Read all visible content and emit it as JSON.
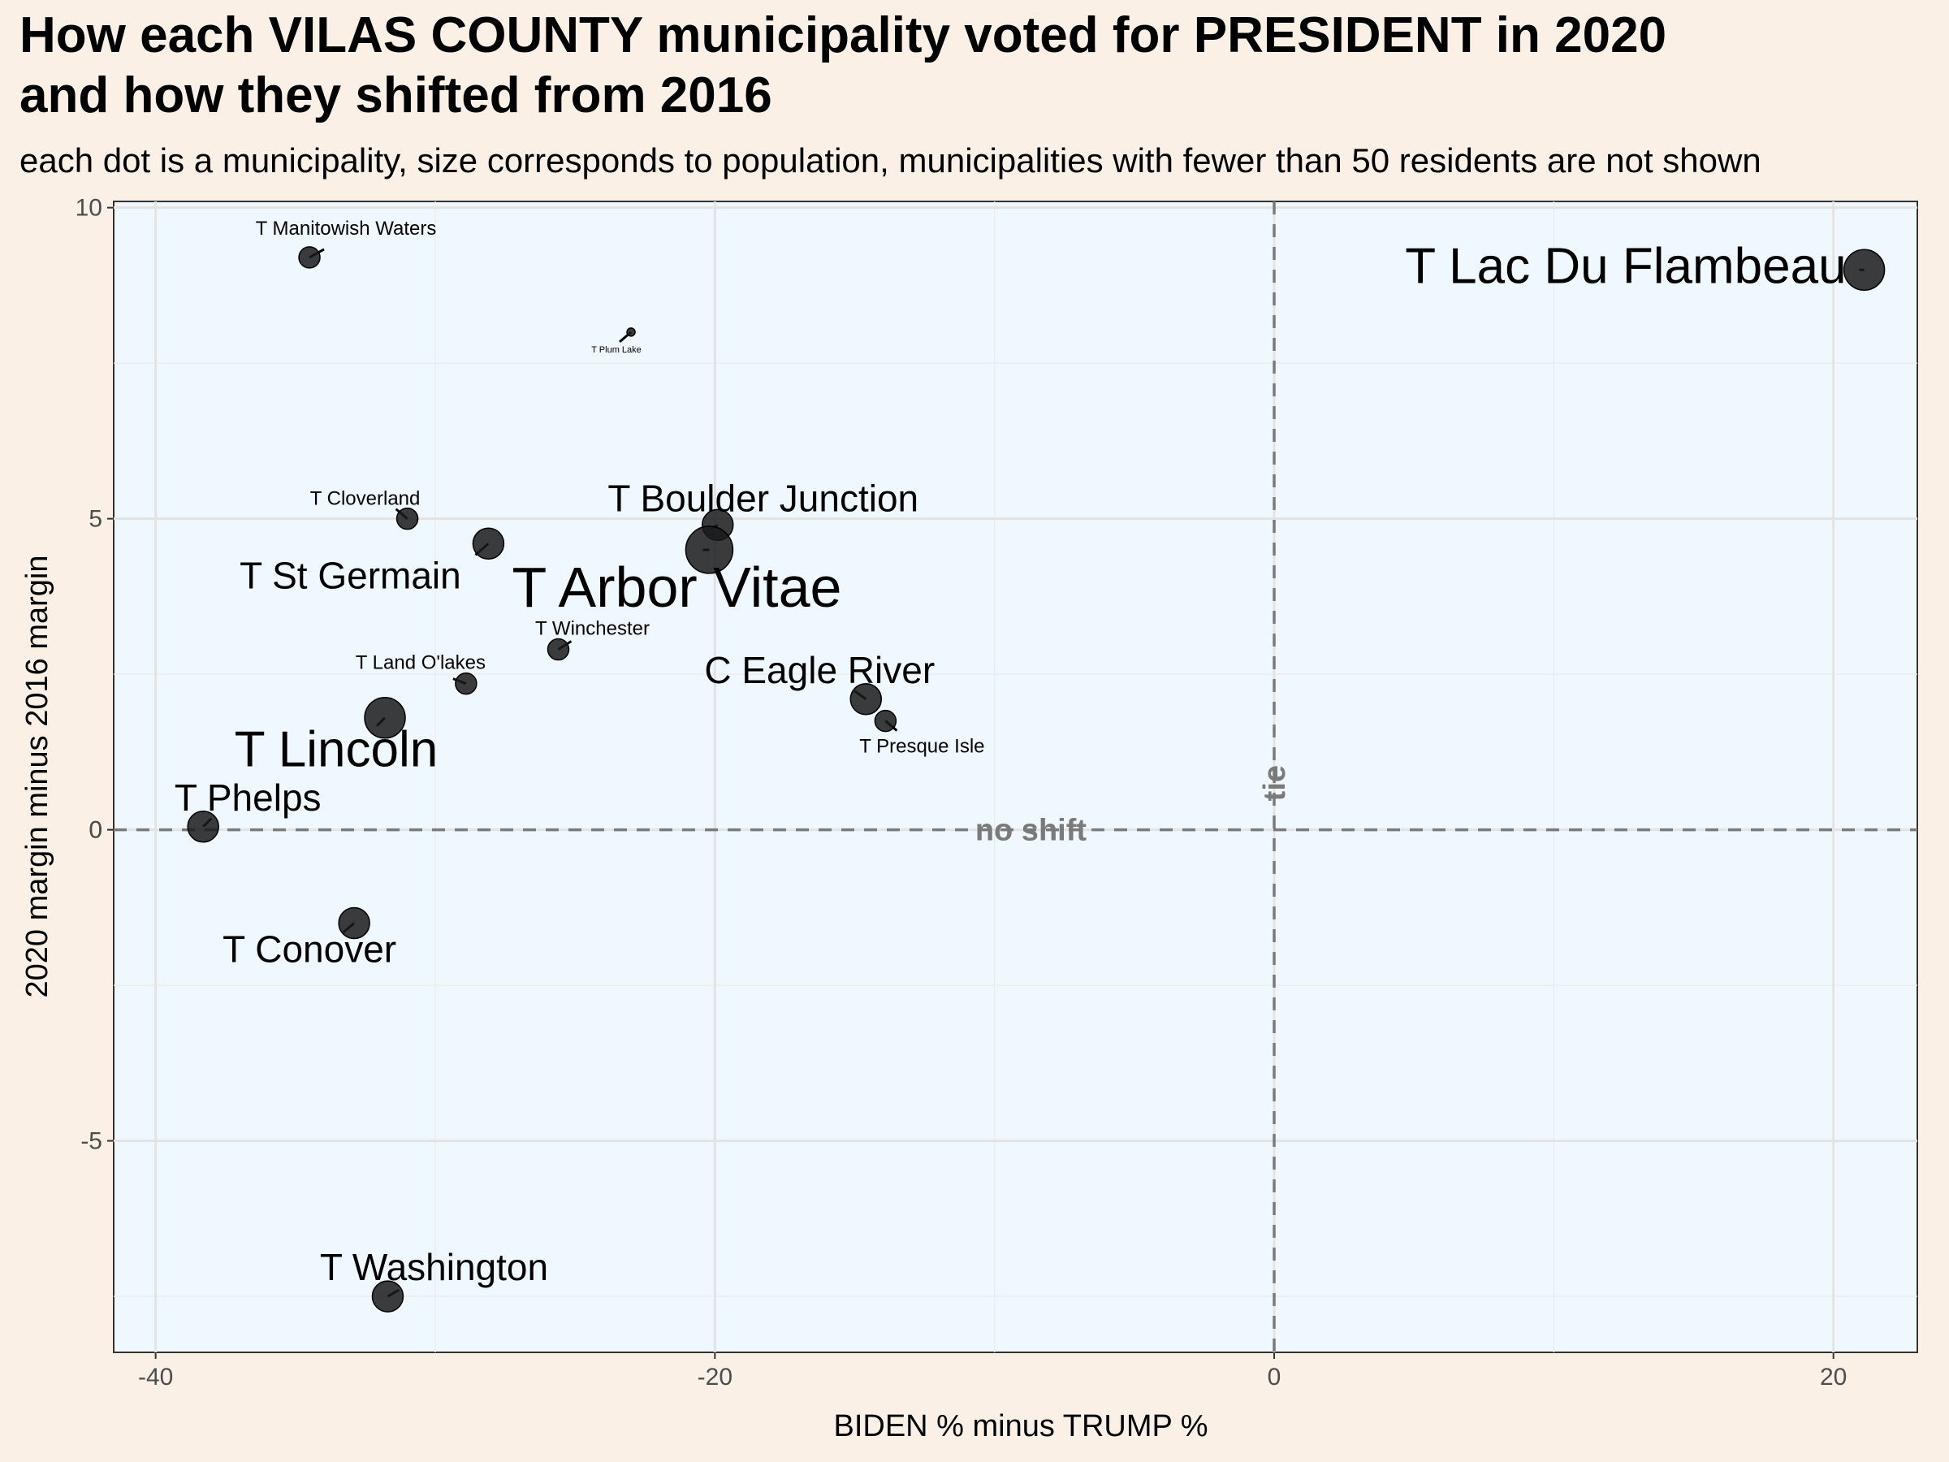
{
  "title_line1": "How each VILAS COUNTY municipality voted for PRESIDENT in 2020",
  "title_line2": "and how they shifted from 2016",
  "subtitle": "each dot is a municipality, size corresponds to population, municipalities with fewer than 50 residents are not shown",
  "colors": {
    "page_background": "#faf0e6",
    "panel_background": "#f0f8ff",
    "point_fill": "#1a1a1a",
    "reference_line": "#7a7a7a"
  },
  "chart_data": {
    "type": "scatter",
    "xlabel": "BIDEN % minus TRUMP %",
    "ylabel": "2020 margin minus 2016 margin",
    "xlim": [
      -41.5,
      23
    ],
    "ylim": [
      -8.4,
      10.1
    ],
    "x_ticks": [
      -40,
      -20,
      0,
      20
    ],
    "y_ticks": [
      -5,
      0,
      5,
      10
    ],
    "x_tick_labels": [
      "-40",
      "-20",
      "0",
      "20"
    ],
    "y_tick_labels": [
      "-5",
      "0",
      "5",
      "10"
    ],
    "grid": true,
    "reference_lines": [
      {
        "axis": "x",
        "value": 0,
        "label": "tie"
      },
      {
        "axis": "y",
        "value": 0,
        "label": "no shift"
      }
    ],
    "points": [
      {
        "name": "T Lac Du Flambeau",
        "x": 21.1,
        "y": 9.0,
        "size": "large"
      },
      {
        "name": "T Manitowish Waters",
        "x": -34.5,
        "y": 9.2,
        "size": "small"
      },
      {
        "name": "T Plum Lake",
        "x": -23.0,
        "y": 8.0,
        "size": "tiny"
      },
      {
        "name": "T Cloverland",
        "x": -31.0,
        "y": 5.0,
        "size": "small"
      },
      {
        "name": "T Boulder Junction",
        "x": -19.9,
        "y": 4.9,
        "size": "medium"
      },
      {
        "name": "T St Germain",
        "x": -28.1,
        "y": 4.6,
        "size": "medium"
      },
      {
        "name": "T Arbor Vitae",
        "x": -20.2,
        "y": 4.5,
        "size": "xlarge"
      },
      {
        "name": "T Winchester",
        "x": -25.6,
        "y": 2.9,
        "size": "small"
      },
      {
        "name": "T Land O'lakes",
        "x": -28.9,
        "y": 2.35,
        "size": "small"
      },
      {
        "name": "C Eagle River",
        "x": -14.6,
        "y": 2.1,
        "size": "medium"
      },
      {
        "name": "T Presque Isle",
        "x": -13.9,
        "y": 1.75,
        "size": "small"
      },
      {
        "name": "T Lincoln",
        "x": -31.8,
        "y": 1.8,
        "size": "large"
      },
      {
        "name": "T Phelps",
        "x": -38.3,
        "y": 0.05,
        "size": "medium"
      },
      {
        "name": "T Conover",
        "x": -32.9,
        "y": -1.5,
        "size": "medium"
      },
      {
        "name": "T Washington",
        "x": -31.7,
        "y": -7.5,
        "size": "medium"
      }
    ]
  }
}
